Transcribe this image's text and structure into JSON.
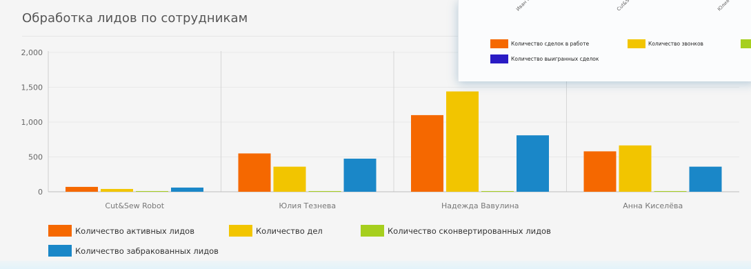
{
  "page": {
    "title": "Обработка лидов по сотрудникам"
  },
  "colors": {
    "active": "#f56800",
    "deals": "#f2c500",
    "converted": "#a6cf1e",
    "rejected": "#1a87c8",
    "won": "#2a1bc4"
  },
  "chart_data": {
    "type": "bar",
    "categories": [
      "Cut&Sew Robot",
      "Юлия Тезнева",
      "Надежда Вавулина",
      "Анна Киселёва"
    ],
    "series": [
      {
        "name": "Количество активных лидов",
        "values": [
          70,
          550,
          1100,
          580
        ],
        "color": "#f56800"
      },
      {
        "name": "Количество дел",
        "values": [
          40,
          360,
          1440,
          665
        ],
        "color": "#f2c500"
      },
      {
        "name": "Количество сконвертированных лидов",
        "values": [
          5,
          5,
          5,
          5
        ],
        "color": "#a6cf1e"
      },
      {
        "name": "Количество забракованных лидов",
        "values": [
          60,
          475,
          810,
          360
        ],
        "color": "#1a87c8"
      }
    ],
    "yticks": [
      "0",
      "500",
      "1,000",
      "1,500",
      "2,000"
    ],
    "ylim": [
      0,
      2000
    ],
    "grid": true,
    "legend_position": "bottom-left"
  },
  "overlay": {
    "categories": [
      "Иван П...",
      "Cut&Sew...",
      "Юлия Те..."
    ],
    "legend": [
      {
        "label": "Количество сделок в работе",
        "color": "#f56800"
      },
      {
        "label": "Количество звонков",
        "color": "#f2c500"
      },
      {
        "label": "",
        "color": "#a6cf1e"
      },
      {
        "label": "Количество выигранных сделок",
        "color": "#2a1bc4"
      }
    ]
  }
}
